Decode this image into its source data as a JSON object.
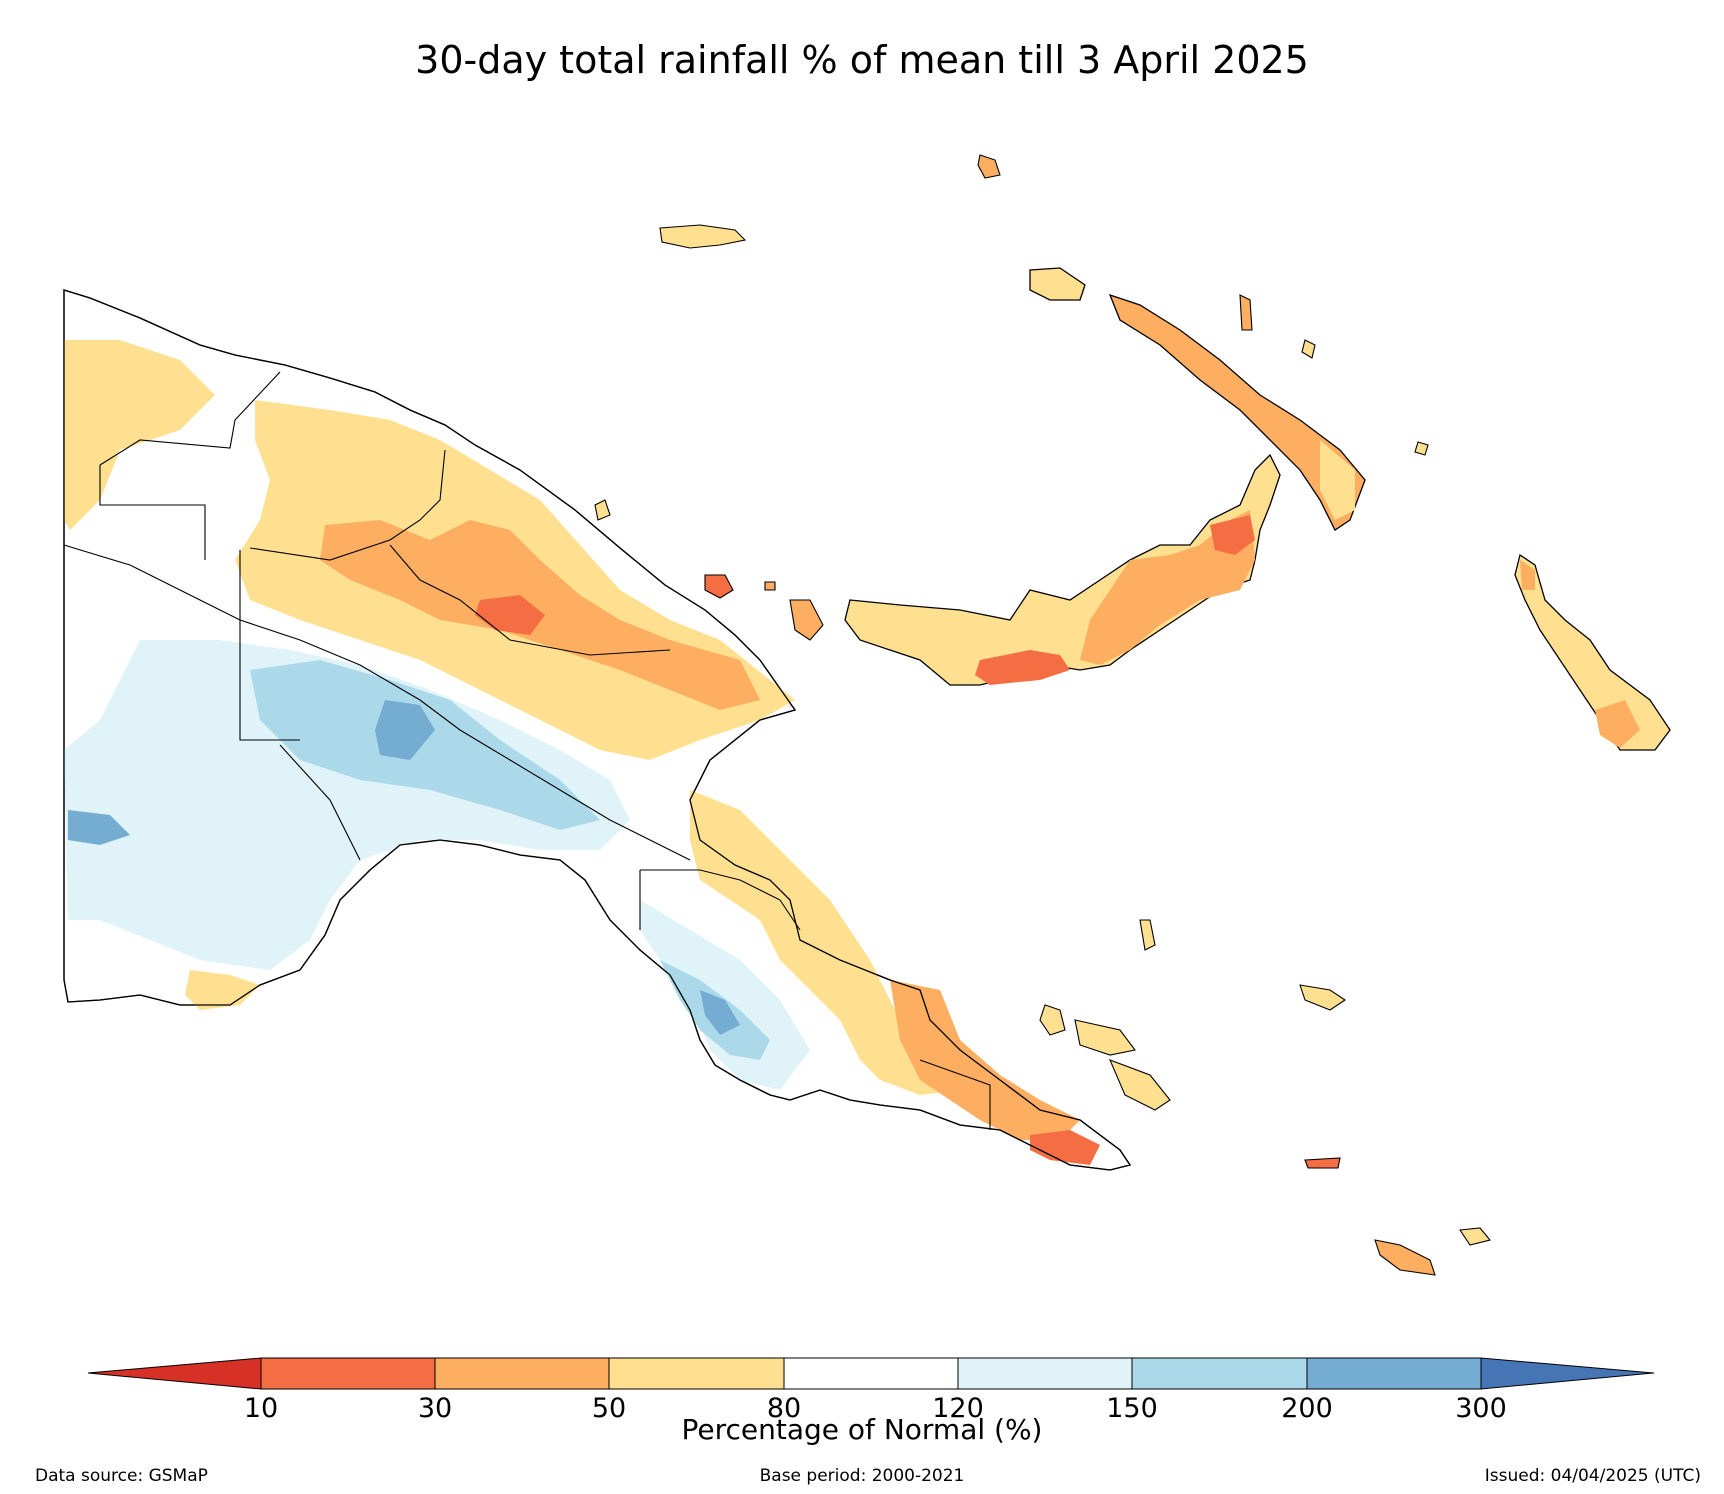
{
  "title": "30-day total rainfall % of mean till 3 April 2025",
  "colorbar": {
    "label": "Percentage of Normal (%)",
    "ticks": [
      "10",
      "30",
      "50",
      "80",
      "120",
      "150",
      "200",
      "300"
    ],
    "colors": {
      "below_10": "#d73027",
      "10_30": "#f46d43",
      "30_50": "#fdae61",
      "50_80": "#fee090",
      "80_120": "#ffffff",
      "120_150": "#e0f3f8",
      "150_200": "#abd9e9",
      "200_300": "#74add1",
      "above_300": "#4575b4"
    }
  },
  "footer": {
    "source": "Data source: GSMaP",
    "base_period": "Base period: 2000-2021",
    "issued": "Issued: 04/04/2025 (UTC)"
  }
}
